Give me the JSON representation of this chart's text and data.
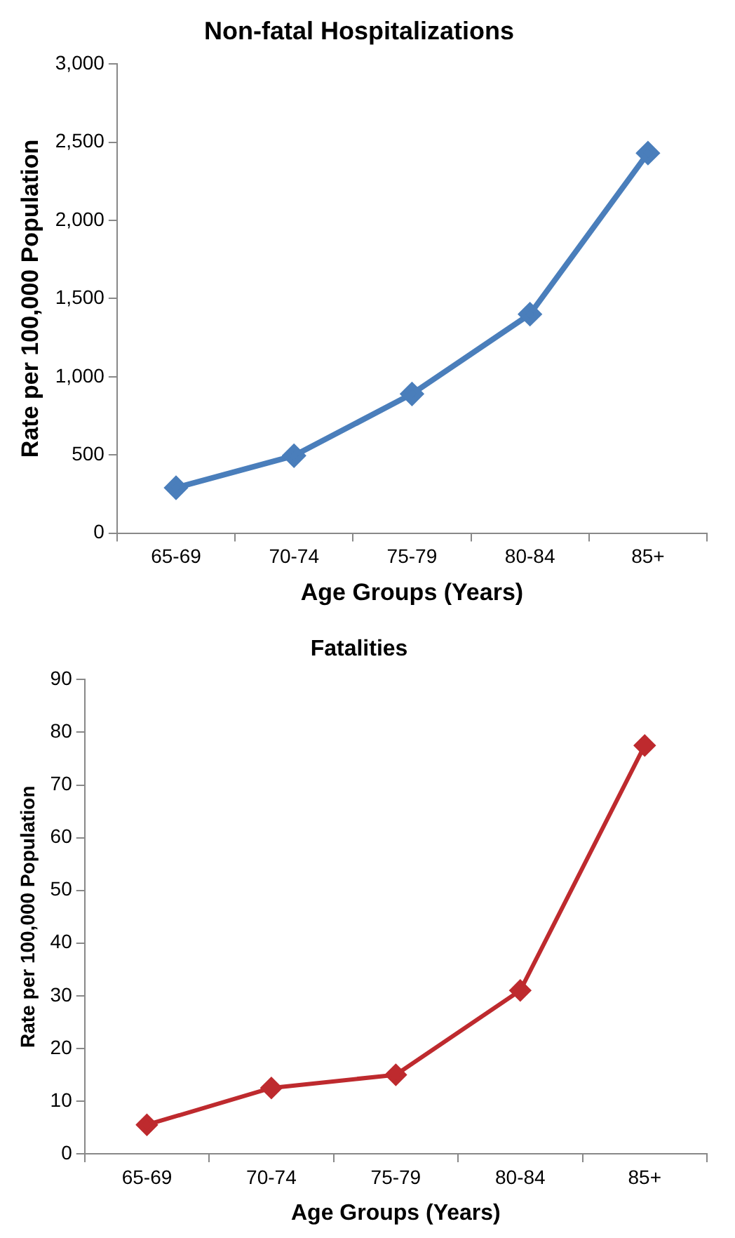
{
  "chart_data": [
    {
      "type": "line",
      "title": "Non-fatal Hospitalizations",
      "xlabel": "Age Groups (Years)",
      "ylabel": "Rate per 100,000 Population",
      "categories": [
        "65-69",
        "70-74",
        "75-79",
        "80-84",
        "85+"
      ],
      "series": [
        {
          "color": "#4a7ebb",
          "values": [
            290,
            495,
            890,
            1400,
            2430
          ]
        }
      ],
      "ylim": [
        0,
        3000
      ],
      "yticks": [
        0,
        500,
        {
          "value": 1000,
          "label": "1,000"
        },
        {
          "value": 1500,
          "label": "1,500"
        },
        {
          "value": 2000,
          "label": "2,000"
        },
        {
          "value": 2500,
          "label": "2,500"
        },
        {
          "value": 3000,
          "label": "3,000"
        }
      ],
      "grid": false,
      "legend": false,
      "marker": "diamond",
      "line_style": "solid"
    },
    {
      "type": "line",
      "title": "Fatalities",
      "xlabel": "Age Groups (Years)",
      "ylabel": "Rate per 100,000 Population",
      "categories": [
        "65-69",
        "70-74",
        "75-79",
        "80-84",
        "85+"
      ],
      "series": [
        {
          "color": "#be2a2e",
          "values": [
            5.5,
            12.5,
            15,
            31,
            77.5
          ]
        }
      ],
      "ylim": [
        0,
        90
      ],
      "yticks": [
        0,
        10,
        20,
        30,
        40,
        50,
        60,
        70,
        80,
        90
      ],
      "grid": false,
      "legend": false,
      "marker": "diamond",
      "line_style": "solid"
    }
  ]
}
